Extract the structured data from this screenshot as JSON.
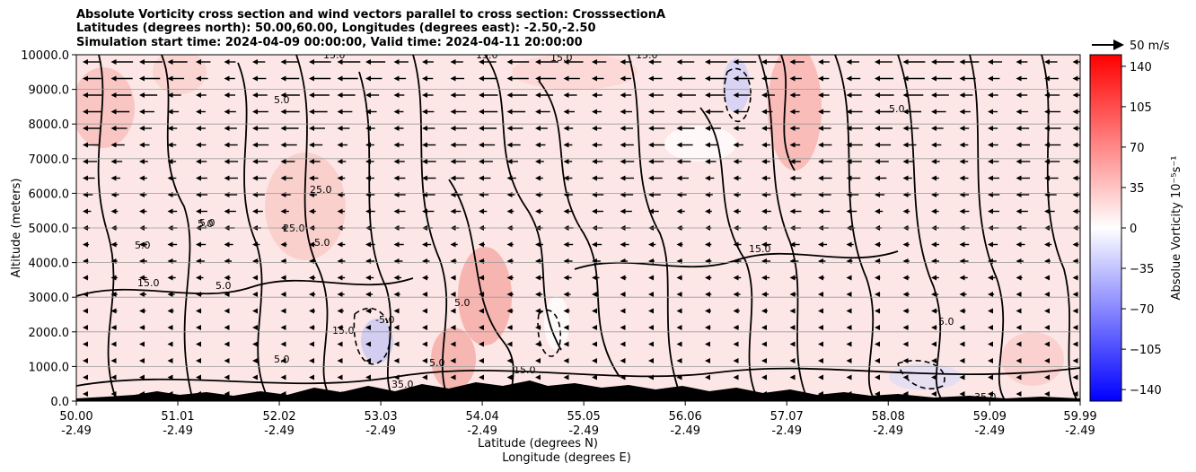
{
  "chart_data": {
    "type": "heatmap",
    "title_lines": [
      "Absolute Vorticity cross section and wind vectors parallel to cross section: CrosssectionA",
      "Latitudes (degrees north): 50.00,60.00, Longitudes (degrees east): -2.50,-2.50",
      "Simulation start time: 2024-04-09 00:00:00, Valid time: 2024-04-11 20:00:00"
    ],
    "ylabel": "Altitude (meters)",
    "xlabel_line1": "Latitude (degrees N)",
    "xlabel_line2": "Longitude (degrees E)",
    "ylim": [
      0,
      10000
    ],
    "xlim": [
      50.0,
      59.99
    ],
    "yticks": [
      "0.0",
      "1000.0",
      "2000.0",
      "3000.0",
      "4000.0",
      "5000.0",
      "6000.0",
      "7000.0",
      "8000.0",
      "9000.0",
      "10000.0"
    ],
    "xticks": [
      {
        "lat": "50.00",
        "lon": "-2.49"
      },
      {
        "lat": "51.01",
        "lon": "-2.49"
      },
      {
        "lat": "52.02",
        "lon": "-2.49"
      },
      {
        "lat": "53.03",
        "lon": "-2.49"
      },
      {
        "lat": "54.04",
        "lon": "-2.49"
      },
      {
        "lat": "55.05",
        "lon": "-2.49"
      },
      {
        "lat": "56.06",
        "lon": "-2.49"
      },
      {
        "lat": "57.07",
        "lon": "-2.49"
      },
      {
        "lat": "58.08",
        "lon": "-2.49"
      },
      {
        "lat": "59.09",
        "lon": "-2.49"
      },
      {
        "lat": "59.99",
        "lon": "-2.49"
      }
    ],
    "horizontal_grid": true,
    "colorbar": {
      "label": "Absolue Vorticity 10⁻⁵s⁻¹",
      "colormap": "bwr",
      "range": [
        -150,
        150
      ],
      "ticks": [
        "140",
        "105",
        "70",
        "35",
        "0",
        "−35",
        "−70",
        "−105",
        "−140"
      ],
      "tick_values": [
        140,
        105,
        70,
        35,
        0,
        -35,
        -70,
        -105,
        -140
      ]
    },
    "quiver_key": {
      "label": "50 m/s",
      "value": 50
    },
    "contour_levels_labeled": [
      "5.0",
      "15.0",
      "25.0",
      "35.0",
      "-5.0",
      "-15.0"
    ],
    "terrain_color": "#000000",
    "wind_direction": "mostly toward decreasing latitude (leftward) aloft"
  }
}
